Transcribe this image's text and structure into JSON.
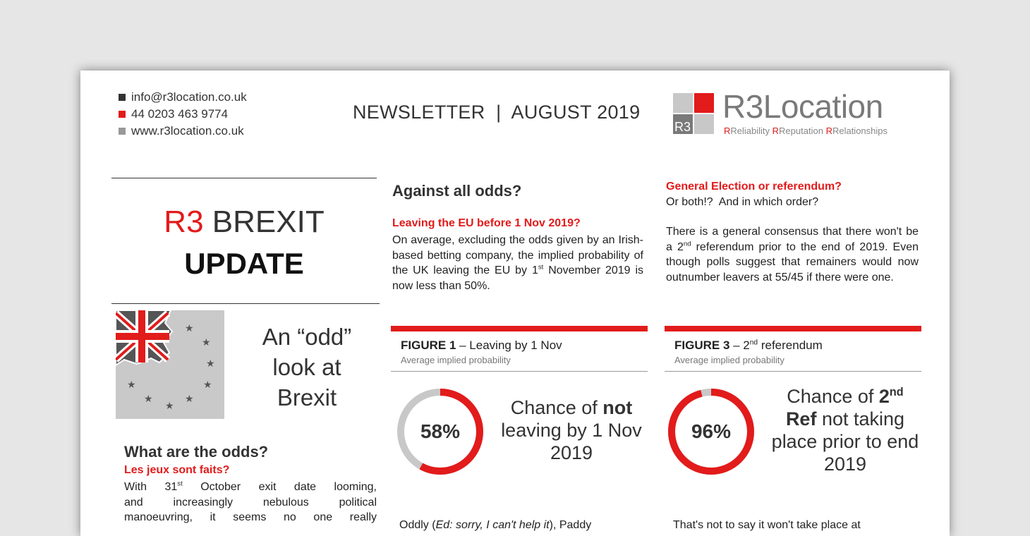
{
  "header": {
    "email": "info@r3location.co.uk",
    "phone": "44 0203 463 9774",
    "website": "www.r3location.co.uk",
    "newsletter": "NEWSLETTER  |  AUGUST 2019",
    "logo_badge": "R3",
    "logo_word": "R3Location",
    "logo_tagline": [
      "Reliability",
      "Reputation",
      "Relationships"
    ],
    "bullet_colors": [
      "#333333",
      "#e21b1b",
      "#999999"
    ]
  },
  "left": {
    "title_r3": "R3",
    "title_rest": " BREXIT",
    "title_update": "UPDATE",
    "odd_title": [
      "An “odd”",
      "look at",
      "Brexit"
    ],
    "section_heading": "What are the odds?",
    "section_subheading": "Les jeux sont faits?",
    "body_lines": [
      "With 31st October exit date looming,",
      "and increasingly nebulous political",
      "manoeuvring, it seems no one really"
    ]
  },
  "middle": {
    "heading": "Against all odds?",
    "subheading": "Leaving the EU before 1 Nov 2019?",
    "body": "On average, excluding the odds given by an Irish-based betting company, the implied probability of the UK leaving the EU by 1st November 2019 is now less than 50%.",
    "figure": {
      "label": "FIGURE 1",
      "title": " – Leaving by 1 Nov",
      "subtitle": "Average implied probability",
      "value_label": "58%",
      "text_pre": "Chance of ",
      "text_bold": "not",
      "text_post": "leaving by 1 Nov 2019"
    },
    "footer_text": "Oddly (Ed: sorry, I can't help it), Paddy"
  },
  "right": {
    "heading": "General Election or referendum?",
    "subheading": "Or both!?  And in which order?",
    "body": "There is a general consensus that there won't be a 2nd referendum prior to the end of 2019. Even though polls suggest that remainers would now outnumber leavers at 55/45 if there were one.",
    "figure": {
      "label": "FIGURE 3",
      "title": " – 2nd referendum",
      "subtitle": "Average implied probability",
      "value_label": "96%",
      "text_pre": "Chance of ",
      "text_bold": "2nd Ref",
      "text_post": "not taking place prior to end 2019"
    },
    "footer_text": "That's not to say it won't take place at"
  },
  "chart_data": [
    {
      "type": "pie",
      "title": "FIGURE 1 – Leaving by 1 Nov",
      "subtitle": "Average implied probability",
      "categories": [
        "Chance of not leaving by 1 Nov 2019",
        "Other"
      ],
      "values": [
        58,
        42
      ],
      "colors": [
        "#e21b1b",
        "#c8c8c8"
      ]
    },
    {
      "type": "pie",
      "title": "FIGURE 3 – 2nd referendum",
      "subtitle": "Average implied probability",
      "categories": [
        "Chance of 2nd Ref not taking place prior to end 2019",
        "Other"
      ],
      "values": [
        96,
        4
      ],
      "colors": [
        "#e21b1b",
        "#c8c8c8"
      ]
    }
  ],
  "colors": {
    "accent": "#e21b1b",
    "text": "#333333",
    "grey": "#c8c8c8"
  }
}
